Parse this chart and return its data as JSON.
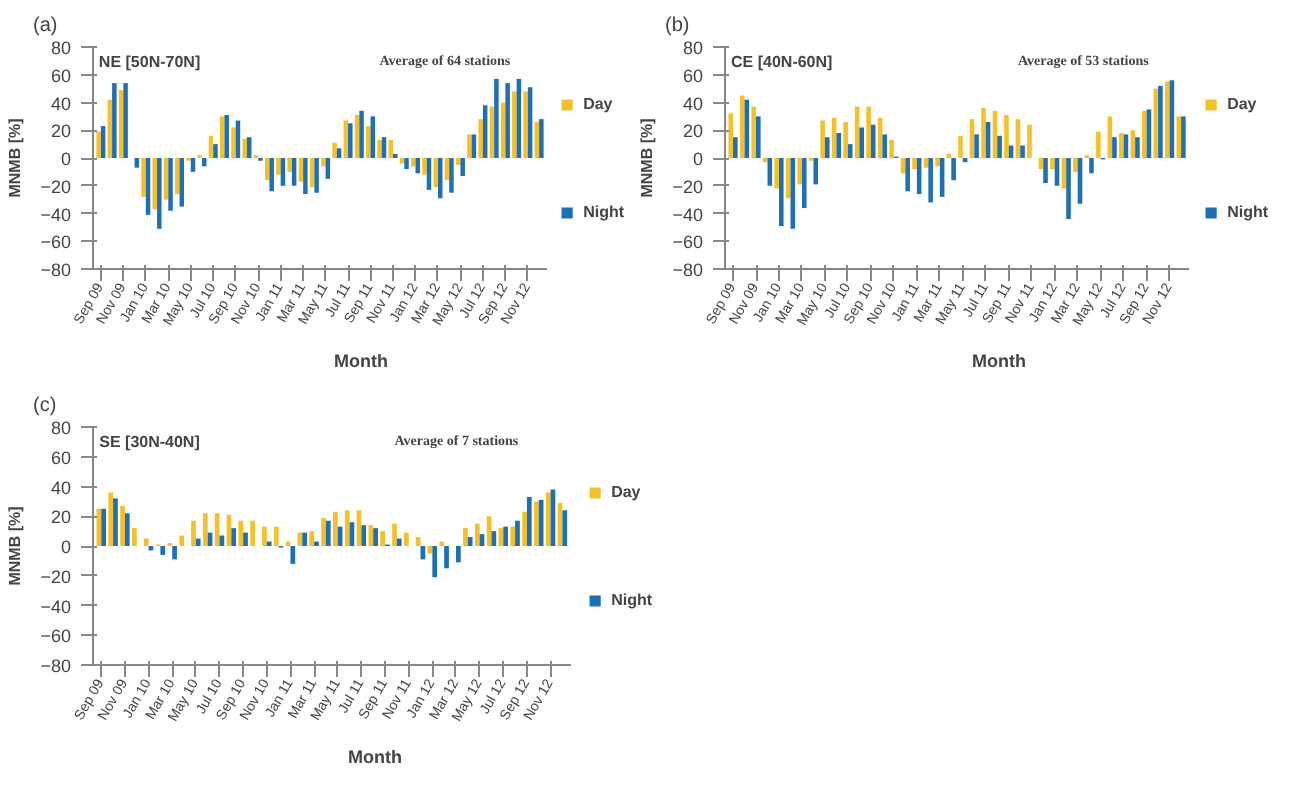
{
  "chart_data": [
    {
      "type": "bar",
      "title": "NE [50N-70N]",
      "xlabel": "Month",
      "ylabel": "MNMB [%]",
      "annotations": [
        "(a)",
        "Average of 64 stations"
      ],
      "categories": [
        "Sep 09",
        null,
        "Nov 09",
        null,
        "Jan 10",
        null,
        "Mar 10",
        null,
        "May 10",
        null,
        "Jul 10",
        null,
        "Sep 10",
        null,
        "Nov 10",
        null,
        "Jan 11",
        null,
        "Mar 11",
        null,
        "May 11",
        null,
        "Jul 11",
        null,
        "Sep 11",
        null,
        "Nov 11",
        null,
        "Jan 12",
        null,
        "Mar 12",
        null,
        "May 12",
        null,
        "Jul 12",
        null,
        "Sep 12",
        null,
        "Nov 12",
        null
      ],
      "series": [
        {
          "name": "Day",
          "color": "#f5c02a",
          "values": [
            19,
            42,
            49,
            0,
            -28,
            -37,
            -30,
            -26,
            -2,
            2,
            16,
            30,
            22,
            14,
            2,
            -16,
            -12,
            -10,
            -17,
            -21,
            -6,
            11,
            27,
            31,
            23,
            13,
            13,
            -4,
            -6,
            -12,
            -21,
            -16,
            -5,
            17,
            28,
            37,
            40,
            48,
            48,
            26
          ]
        },
        {
          "name": "Night",
          "color": "#1f6fb5",
          "values": [
            23,
            54,
            54,
            -7,
            -41,
            -51,
            -38,
            -35,
            -10,
            -6,
            10,
            31,
            27,
            15,
            -2,
            -24,
            -20,
            -20,
            -26,
            -25,
            -15,
            7,
            25,
            34,
            30,
            15,
            3,
            -8,
            -11,
            -23,
            -29,
            -25,
            -13,
            17,
            38,
            57,
            54,
            57,
            51,
            28
          ]
        }
      ],
      "ylim": [
        -80,
        80
      ],
      "yticks": [
        -80,
        -60,
        -40,
        -20,
        0,
        20,
        40,
        60,
        80
      ],
      "legend": "right"
    },
    {
      "type": "bar",
      "title": "CE [40N-60N]",
      "xlabel": "Month",
      "ylabel": "MNMB [%]",
      "annotations": [
        "(b)",
        "Average of 53 stations"
      ],
      "categories": [
        "Sep 09",
        null,
        "Nov 09",
        null,
        "Jan 10",
        null,
        "Mar 10",
        null,
        "May 10",
        null,
        "Jul 10",
        null,
        "Sep 10",
        null,
        "Nov 10",
        null,
        "Jan 11",
        null,
        "Mar 11",
        null,
        "May 11",
        null,
        "Jul 11",
        null,
        "Sep 11",
        null,
        "Nov 11",
        null,
        "Jan 12",
        null,
        "Mar 12",
        null,
        "May 12",
        null,
        "Jul 12",
        null,
        "Sep 12",
        null,
        "Nov 12",
        null
      ],
      "series": [
        {
          "name": "Day",
          "color": "#f5c02a",
          "values": [
            32,
            45,
            37,
            -3,
            -22,
            -29,
            -19,
            -2,
            27,
            29,
            26,
            37,
            37,
            29,
            13,
            -11,
            -8,
            -7,
            -6,
            3,
            16,
            28,
            36,
            34,
            31,
            28,
            24,
            -8,
            -8,
            -22,
            -10,
            2,
            19,
            30,
            18,
            20,
            34,
            50,
            55,
            30
          ]
        },
        {
          "name": "Night",
          "color": "#1f6fb5",
          "values": [
            15,
            42,
            30,
            -20,
            -49,
            -51,
            -36,
            -19,
            15,
            18,
            10,
            22,
            24,
            17,
            1,
            -24,
            -26,
            -32,
            -28,
            -16,
            -3,
            17,
            26,
            16,
            9,
            9,
            0,
            -18,
            -20,
            -44,
            -33,
            -11,
            -1,
            15,
            17,
            15,
            35,
            52,
            56,
            30
          ]
        }
      ],
      "ylim": [
        -80,
        80
      ],
      "yticks": [
        -80,
        -60,
        -40,
        -20,
        0,
        20,
        40,
        60,
        80
      ],
      "legend": "right"
    },
    {
      "type": "bar",
      "title": "SE [30N-40N]",
      "xlabel": "Month",
      "ylabel": "MNMB [%]",
      "annotations": [
        "(c)",
        "Average of 7 stations"
      ],
      "categories": [
        "Sep 09",
        null,
        "Nov 09",
        null,
        "Jan 10",
        null,
        "Mar 10",
        null,
        "May 10",
        null,
        "Jul 10",
        null,
        "Sep 10",
        null,
        "Nov 10",
        null,
        "Jan 11",
        null,
        "Mar 11",
        null,
        "May 11",
        null,
        "Jul 11",
        null,
        "Sep 11",
        null,
        "Nov 11",
        null,
        "Jan 12",
        null,
        "Mar 12",
        null,
        "May 12",
        null,
        "Jul 12",
        null,
        "Sep 12",
        null,
        "Nov 12",
        null
      ],
      "series": [
        {
          "name": "Day",
          "color": "#f5c02a",
          "values": [
            25,
            36,
            27,
            12,
            5,
            1,
            2,
            7,
            17,
            22,
            22,
            21,
            17,
            17,
            13,
            13,
            3,
            9,
            10,
            19,
            23,
            24,
            24,
            14,
            10,
            15,
            9,
            6,
            -5,
            3,
            0,
            12,
            15,
            20,
            12,
            13,
            23,
            30,
            36,
            29
          ]
        },
        {
          "name": "Night",
          "color": "#1f6fb5",
          "values": [
            25,
            32,
            22,
            0,
            -3,
            -6,
            -9,
            0,
            5,
            9,
            7,
            12,
            9,
            0,
            3,
            -1,
            -12,
            9,
            3,
            17,
            13,
            16,
            14,
            12,
            1,
            5,
            0,
            -9,
            -21,
            -15,
            -11,
            6,
            8,
            10,
            13,
            17,
            33,
            31,
            38,
            24
          ]
        }
      ],
      "ylim": [
        -80,
        80
      ],
      "yticks": [
        -80,
        -60,
        -40,
        -20,
        0,
        20,
        40,
        60,
        80
      ],
      "legend": "right"
    }
  ]
}
